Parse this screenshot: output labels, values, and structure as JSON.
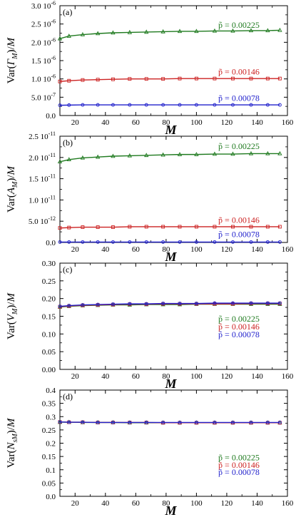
{
  "chart_data": [
    {
      "type": "line",
      "panel_label": "(a)",
      "ylabel_parts": [
        "Var(",
        "Γ",
        "M",
        ")/",
        "M"
      ],
      "xlabel": "M",
      "xlim": [
        10,
        160
      ],
      "ylim": [
        0,
        3e-06
      ],
      "x_ticks": [
        20,
        40,
        60,
        80,
        100,
        120,
        140,
        160
      ],
      "y_ticks": [
        0,
        5e-07,
        1e-06,
        1.5e-06,
        2e-06,
        2.5e-06,
        3e-06
      ],
      "y_tick_labels": [
        {
          "mant": "0.0",
          "exp": ""
        },
        {
          "mant": "5.0",
          "exp": "-7"
        },
        {
          "mant": "1.0",
          "exp": "-6"
        },
        {
          "mant": "1.5",
          "exp": "-6"
        },
        {
          "mant": "2.0",
          "exp": "-6"
        },
        {
          "mant": "2.5",
          "exp": "-6"
        },
        {
          "mant": "3.0",
          "exp": "-6"
        }
      ],
      "series": [
        {
          "name": "p̃ = 0.00225",
          "color": "#1f7a1f",
          "marker": "triangle",
          "x": [
            10,
            16,
            25,
            35,
            45,
            56,
            67,
            78,
            89,
            100,
            112,
            124,
            136,
            147,
            155
          ],
          "y": [
            2.1e-06,
            2.17e-06,
            2.21e-06,
            2.24e-06,
            2.26e-06,
            2.27e-06,
            2.28e-06,
            2.29e-06,
            2.3e-06,
            2.3e-06,
            2.31e-06,
            2.31e-06,
            2.32e-06,
            2.32e-06,
            2.33e-06
          ],
          "label_x": 128,
          "label_y": 2.4e-06
        },
        {
          "name": "p̃ = 0.00146",
          "color": "#cc2222",
          "marker": "square",
          "x": [
            10,
            16,
            25,
            35,
            45,
            56,
            67,
            78,
            89,
            100,
            112,
            124,
            136,
            147,
            155
          ],
          "y": [
            9.3e-07,
            9.5e-07,
            9.7e-07,
            9.8e-07,
            9.9e-07,
            1e-06,
            1e-06,
            1e-06,
            1.01e-06,
            1.01e-06,
            1.01e-06,
            1.01e-06,
            1.01e-06,
            1.01e-06,
            1.01e-06
          ],
          "label_x": 128,
          "label_y": 1.12e-06
        },
        {
          "name": "p̃ = 0.00078",
          "color": "#2222cc",
          "marker": "circle",
          "x": [
            10,
            16,
            25,
            35,
            45,
            56,
            67,
            78,
            89,
            100,
            112,
            124,
            136,
            147,
            155
          ],
          "y": [
            2.8e-07,
            2.85e-07,
            2.9e-07,
            2.9e-07,
            2.9e-07,
            2.9e-07,
            2.9e-07,
            2.9e-07,
            2.9e-07,
            2.9e-07,
            2.9e-07,
            2.9e-07,
            2.9e-07,
            2.9e-07,
            2.9e-07
          ],
          "label_x": 128,
          "label_y": 4e-07
        }
      ]
    },
    {
      "type": "line",
      "panel_label": "(b)",
      "ylabel_parts": [
        "Var(",
        "A",
        "M",
        ")/",
        "M"
      ],
      "xlabel": "M",
      "xlim": [
        10,
        160
      ],
      "ylim": [
        0,
        2.5e-11
      ],
      "x_ticks": [
        20,
        40,
        60,
        80,
        100,
        120,
        140,
        160
      ],
      "y_ticks": [
        0,
        5e-12,
        1e-11,
        1.5e-11,
        2e-11,
        2.5e-11
      ],
      "y_tick_labels": [
        {
          "mant": "0.0",
          "exp": ""
        },
        {
          "mant": "5.0",
          "exp": "-12"
        },
        {
          "mant": "1.0",
          "exp": "-11"
        },
        {
          "mant": "1.5",
          "exp": "-11"
        },
        {
          "mant": "2.0",
          "exp": "-11"
        },
        {
          "mant": "2.5",
          "exp": "-11"
        }
      ],
      "series": [
        {
          "name": "p̃ = 0.00225",
          "color": "#1f7a1f",
          "marker": "triangle",
          "x": [
            10,
            16,
            25,
            35,
            45,
            56,
            67,
            78,
            89,
            100,
            112,
            124,
            136,
            147,
            155
          ],
          "y": [
            1.9e-11,
            1.95e-11,
            1.99e-11,
            2.01e-11,
            2.03e-11,
            2.04e-11,
            2.05e-11,
            2.06e-11,
            2.07e-11,
            2.07e-11,
            2.08e-11,
            2.08e-11,
            2.09e-11,
            2.09e-11,
            2.09e-11
          ],
          "label_x": 128,
          "label_y": 2.2e-11
        },
        {
          "name": "p̃ = 0.00146",
          "color": "#cc2222",
          "marker": "square",
          "x": [
            10,
            16,
            25,
            35,
            45,
            56,
            67,
            78,
            89,
            100,
            112,
            124,
            136,
            147,
            155
          ],
          "y": [
            3.4e-12,
            3.5e-12,
            3.6e-12,
            3.6e-12,
            3.6e-12,
            3.7e-12,
            3.7e-12,
            3.7e-12,
            3.7e-12,
            3.7e-12,
            3.7e-12,
            3.7e-12,
            3.7e-12,
            3.7e-12,
            3.7e-12
          ],
          "label_x": 128,
          "label_y": 4.6e-12
        },
        {
          "name": "p̃ = 0.00078",
          "color": "#2222cc",
          "marker": "circle",
          "x": [
            10,
            16,
            25,
            35,
            45,
            56,
            67,
            78,
            89,
            100,
            112,
            124,
            136,
            147,
            155
          ],
          "y": [
            1e-13,
            1e-13,
            1e-13,
            1e-13,
            1e-13,
            1e-13,
            1e-13,
            1e-13,
            1e-13,
            1e-13,
            1e-13,
            1e-13,
            1e-13,
            1e-13,
            1e-13
          ],
          "label_x": 128,
          "label_y": 1.3e-12
        }
      ]
    },
    {
      "type": "line",
      "panel_label": "(c)",
      "ylabel_parts": [
        "Var(",
        "V",
        "M",
        ")/",
        "M"
      ],
      "xlabel": "M",
      "xlim": [
        10,
        160
      ],
      "ylim": [
        0,
        0.3
      ],
      "x_ticks": [
        20,
        40,
        60,
        80,
        100,
        120,
        140,
        160
      ],
      "y_ticks": [
        0,
        0.05,
        0.1,
        0.15,
        0.2,
        0.25,
        0.3
      ],
      "y_tick_labels": [
        {
          "mant": "0.00",
          "exp": ""
        },
        {
          "mant": "0.05",
          "exp": ""
        },
        {
          "mant": "0.10",
          "exp": ""
        },
        {
          "mant": "0.15",
          "exp": ""
        },
        {
          "mant": "0.20",
          "exp": ""
        },
        {
          "mant": "0.25",
          "exp": ""
        },
        {
          "mant": "0.30",
          "exp": ""
        }
      ],
      "series": [
        {
          "name": "p̃ = 0.00225",
          "color": "#1f7a1f",
          "marker": "triangle",
          "x": [
            10,
            16,
            25,
            35,
            45,
            56,
            67,
            78,
            89,
            100,
            112,
            124,
            136,
            147,
            155
          ],
          "y": [
            0.176,
            0.178,
            0.18,
            0.181,
            0.182,
            0.182,
            0.183,
            0.183,
            0.183,
            0.184,
            0.184,
            0.184,
            0.184,
            0.184,
            0.184
          ],
          "label_x": 128,
          "label_y": 0.135
        },
        {
          "name": "p̃ = 0.00146",
          "color": "#cc2222",
          "marker": "square",
          "x": [
            10,
            16,
            25,
            35,
            45,
            56,
            67,
            78,
            89,
            100,
            112,
            124,
            136,
            147,
            155
          ],
          "y": [
            0.177,
            0.179,
            0.181,
            0.182,
            0.183,
            0.184,
            0.184,
            0.185,
            0.185,
            0.185,
            0.185,
            0.185,
            0.186,
            0.186,
            0.186
          ],
          "label_x": 128,
          "label_y": 0.113
        },
        {
          "name": "p̃ = 0.00078",
          "color": "#2222cc",
          "marker": "circle",
          "x": [
            10,
            16,
            25,
            35,
            45,
            56,
            67,
            78,
            89,
            100,
            112,
            124,
            136,
            147,
            155
          ],
          "y": [
            0.178,
            0.18,
            0.182,
            0.183,
            0.184,
            0.185,
            0.185,
            0.186,
            0.186,
            0.186,
            0.187,
            0.187,
            0.187,
            0.187,
            0.187
          ],
          "label_x": 128,
          "label_y": 0.091
        }
      ]
    },
    {
      "type": "line",
      "panel_label": "(d)",
      "ylabel_parts": [
        "Var(",
        "N",
        "sM",
        ")/",
        "M"
      ],
      "xlabel": "M",
      "xlim": [
        10,
        160
      ],
      "ylim": [
        0,
        0.4
      ],
      "x_ticks": [
        20,
        40,
        60,
        80,
        100,
        120,
        140,
        160
      ],
      "y_ticks": [
        0,
        0.05,
        0.1,
        0.15,
        0.2,
        0.25,
        0.3,
        0.35,
        0.4
      ],
      "y_tick_labels": [
        {
          "mant": "0.0",
          "exp": ""
        },
        {
          "mant": "0.05",
          "exp": ""
        },
        {
          "mant": "0.1",
          "exp": ""
        },
        {
          "mant": "0.15",
          "exp": ""
        },
        {
          "mant": "0.2",
          "exp": ""
        },
        {
          "mant": "0.25",
          "exp": ""
        },
        {
          "mant": "0.3",
          "exp": ""
        },
        {
          "mant": "0.35",
          "exp": ""
        },
        {
          "mant": "0.4",
          "exp": ""
        }
      ],
      "series": [
        {
          "name": "p̃ = 0.00225",
          "color": "#1f7a1f",
          "marker": "triangle",
          "x": [
            10,
            16,
            25,
            35,
            45,
            56,
            67,
            78,
            89,
            100,
            112,
            124,
            136,
            147,
            155
          ],
          "y": [
            0.279,
            0.279,
            0.278,
            0.278,
            0.278,
            0.277,
            0.277,
            0.277,
            0.277,
            0.277,
            0.277,
            0.277,
            0.277,
            0.277,
            0.277
          ],
          "label_x": 128,
          "label_y": 0.135
        },
        {
          "name": "p̃ = 0.00146",
          "color": "#cc2222",
          "marker": "square",
          "x": [
            10,
            16,
            25,
            35,
            45,
            56,
            67,
            78,
            89,
            100,
            112,
            124,
            136,
            147,
            155
          ],
          "y": [
            0.28,
            0.279,
            0.279,
            0.278,
            0.278,
            0.278,
            0.278,
            0.277,
            0.277,
            0.277,
            0.277,
            0.277,
            0.277,
            0.277,
            0.277
          ],
          "label_x": 128,
          "label_y": 0.107
        },
        {
          "name": "p̃ = 0.00078",
          "color": "#2222cc",
          "marker": "circle",
          "x": [
            10,
            16,
            25,
            35,
            45,
            56,
            67,
            78,
            89,
            100,
            112,
            124,
            136,
            147,
            155
          ],
          "y": [
            0.28,
            0.279,
            0.279,
            0.278,
            0.278,
            0.278,
            0.278,
            0.278,
            0.278,
            0.278,
            0.278,
            0.278,
            0.278,
            0.278,
            0.278
          ],
          "label_x": 128,
          "label_y": 0.08
        }
      ]
    }
  ]
}
